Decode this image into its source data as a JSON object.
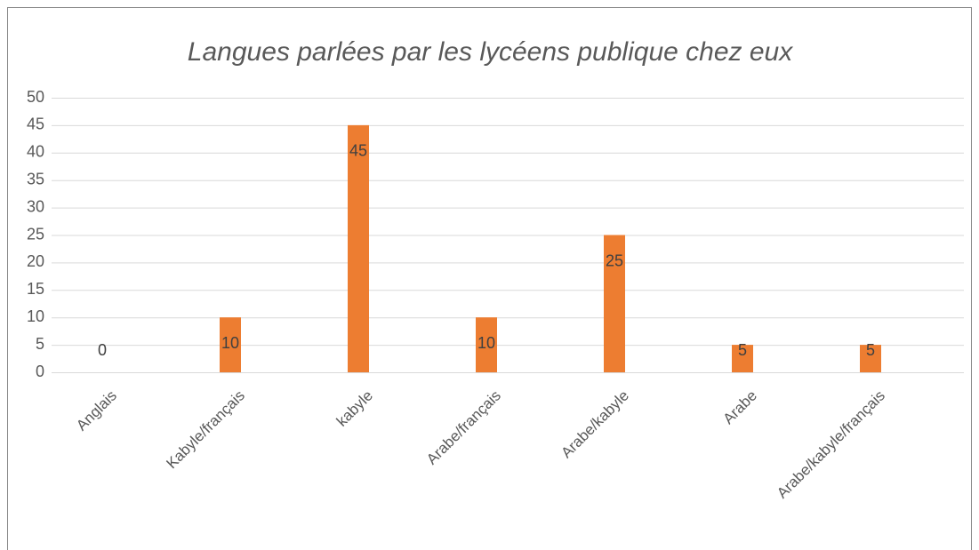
{
  "chart_data": {
    "type": "bar",
    "title": "Langues parlées par les lycéens publique chez eux",
    "categories": [
      "Anglais",
      "Kabyle/français",
      "kabyle",
      "Arabe/français",
      "Arabe/kabyle",
      "Arabe",
      "Arabe/kabyle/français"
    ],
    "values": [
      0,
      10,
      45,
      10,
      25,
      5,
      5
    ],
    "color": "#ed7d31",
    "ylim": [
      0,
      50
    ],
    "yticks": [
      0,
      5,
      10,
      15,
      20,
      25,
      30,
      35,
      40,
      45,
      50
    ],
    "grid": true
  }
}
